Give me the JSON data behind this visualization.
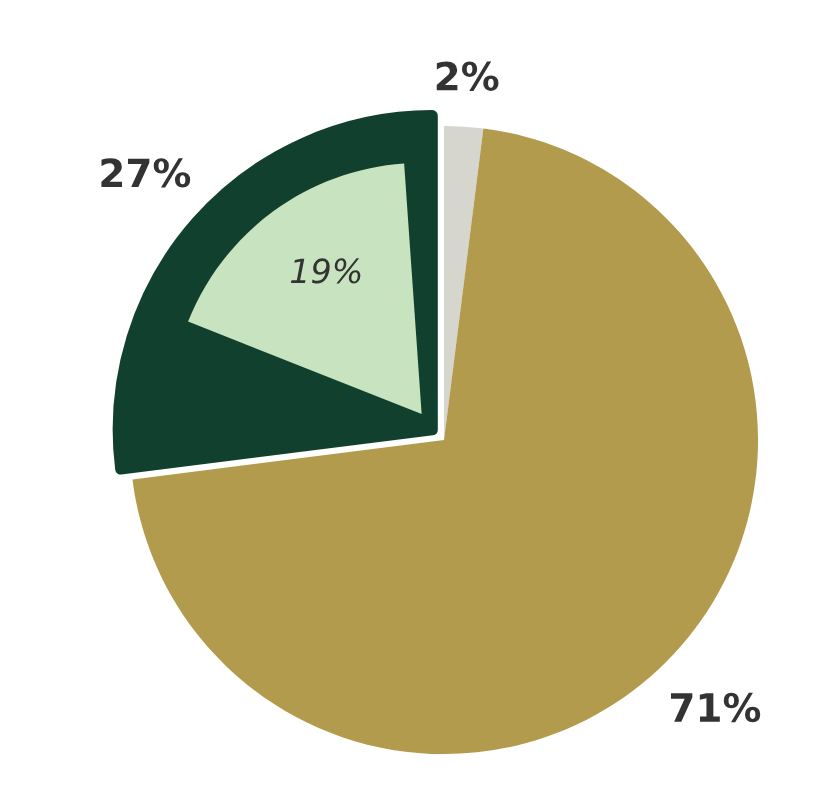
{
  "chart_data": {
    "type": "pie",
    "categories": [
      null,
      null,
      null
    ],
    "series": [
      {
        "values": [
          2,
          71,
          27
        ],
        "colors": [
          "#d6d6cf",
          "#b39b4d",
          "#12402f"
        ],
        "value_labels": [
          "2%",
          "71%",
          "27%"
        ]
      },
      {
        "values": [
          null,
          null,
          19
        ],
        "colors": [
          null,
          null,
          "#c8e3bf"
        ],
        "value_labels": [
          null,
          null,
          "19%"
        ]
      }
    ]
  }
}
